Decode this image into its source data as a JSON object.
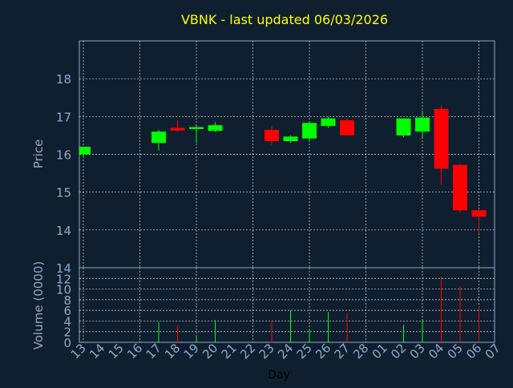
{
  "chart_data": [
    {
      "type": "candlestick",
      "title": "VBNK - last updated 06/03/2026",
      "ylabel": "Price",
      "ylim": [
        13.0,
        19.0
      ],
      "yticks": [
        14,
        15,
        16,
        17,
        18
      ],
      "grid": true,
      "colors": {
        "up": "#00ff00",
        "down": "#ff0000",
        "title": "#ffff00",
        "axis_text": "#8fa9c9"
      },
      "x": [
        "13",
        "14",
        "15",
        "16",
        "17",
        "18",
        "19",
        "20",
        "21",
        "22",
        "23",
        "24",
        "25",
        "26",
        "27",
        "28",
        "01",
        "02",
        "03",
        "04",
        "05",
        "06",
        "07"
      ],
      "candles": [
        {
          "x": "13",
          "open": 16.0,
          "high": 16.2,
          "low": 15.9,
          "close": 16.2
        },
        {
          "x": "17",
          "open": 16.3,
          "high": 16.65,
          "low": 16.1,
          "close": 16.6
        },
        {
          "x": "18",
          "open": 16.7,
          "high": 16.9,
          "low": 16.6,
          "close": 16.63
        },
        {
          "x": "19",
          "open": 16.67,
          "high": 16.75,
          "low": 16.3,
          "close": 16.72
        },
        {
          "x": "20",
          "open": 16.62,
          "high": 16.85,
          "low": 16.6,
          "close": 16.77
        },
        {
          "x": "23",
          "open": 16.65,
          "high": 16.75,
          "low": 16.25,
          "close": 16.35
        },
        {
          "x": "24",
          "open": 16.35,
          "high": 16.5,
          "low": 16.3,
          "close": 16.47
        },
        {
          "x": "25",
          "open": 16.42,
          "high": 16.85,
          "low": 16.35,
          "close": 16.83
        },
        {
          "x": "26",
          "open": 16.75,
          "high": 17.0,
          "low": 16.7,
          "close": 16.95
        },
        {
          "x": "27",
          "open": 16.9,
          "high": 16.95,
          "low": 16.5,
          "close": 16.5
        },
        {
          "x": "02",
          "open": 16.5,
          "high": 16.95,
          "low": 16.45,
          "close": 16.95
        },
        {
          "x": "03",
          "open": 16.6,
          "high": 17.15,
          "low": 16.45,
          "close": 16.97
        },
        {
          "x": "04",
          "open": 17.2,
          "high": 17.3,
          "low": 15.2,
          "close": 15.62
        },
        {
          "x": "05",
          "open": 15.72,
          "high": 15.75,
          "low": 14.45,
          "close": 14.52
        },
        {
          "x": "06",
          "open": 14.52,
          "high": 14.55,
          "low": 13.9,
          "close": 14.35
        }
      ]
    },
    {
      "type": "bar",
      "xlabel": "Day",
      "ylabel": "Volume (0000)",
      "ylim": [
        0,
        14
      ],
      "yticks": [
        0,
        2,
        4,
        6,
        8,
        10,
        12,
        14
      ],
      "grid": true,
      "bars": [
        {
          "x": "17",
          "value": 3.8,
          "dir": "up"
        },
        {
          "x": "18",
          "value": 3.2,
          "dir": "down"
        },
        {
          "x": "19",
          "value": 1.2,
          "dir": "up"
        },
        {
          "x": "20",
          "value": 4.2,
          "dir": "up"
        },
        {
          "x": "23",
          "value": 4.2,
          "dir": "down"
        },
        {
          "x": "24",
          "value": 6.0,
          "dir": "up"
        },
        {
          "x": "25",
          "value": 2.5,
          "dir": "up"
        },
        {
          "x": "26",
          "value": 5.7,
          "dir": "up"
        },
        {
          "x": "27",
          "value": 5.5,
          "dir": "down"
        },
        {
          "x": "02",
          "value": 3.3,
          "dir": "up"
        },
        {
          "x": "03",
          "value": 4.2,
          "dir": "up"
        },
        {
          "x": "04",
          "value": 12.3,
          "dir": "down"
        },
        {
          "x": "05",
          "value": 10.5,
          "dir": "down"
        },
        {
          "x": "06",
          "value": 6.7,
          "dir": "down"
        }
      ]
    }
  ]
}
